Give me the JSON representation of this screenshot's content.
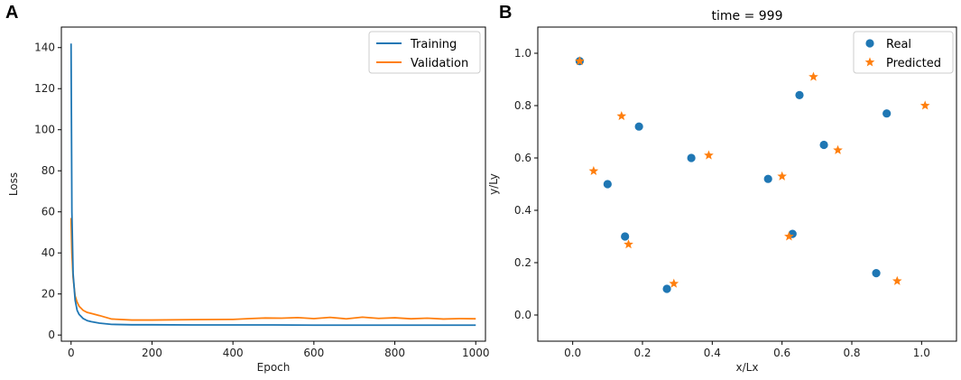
{
  "panels": {
    "a": {
      "letter": "A"
    },
    "b": {
      "letter": "B"
    }
  },
  "chart_data": [
    {
      "type": "line",
      "title": "",
      "xlabel": "Epoch",
      "ylabel": "Loss",
      "xlim": [
        -24,
        1024
      ],
      "ylim": [
        -3,
        150
      ],
      "xticks": [
        0,
        200,
        400,
        600,
        800,
        1000
      ],
      "yticks": [
        0,
        20,
        40,
        60,
        80,
        100,
        120,
        140
      ],
      "legend_position": "top-right",
      "series": [
        {
          "name": "Training",
          "color": "#1f77b4",
          "x": [
            0,
            2,
            5,
            10,
            15,
            20,
            30,
            40,
            50,
            70,
            100,
            150,
            200,
            300,
            400,
            500,
            600,
            700,
            800,
            900,
            1000
          ],
          "y": [
            142,
            60,
            30,
            17,
            12,
            10,
            8,
            7,
            6.5,
            5.8,
            5.2,
            5.0,
            5.0,
            4.9,
            4.9,
            4.9,
            4.8,
            4.8,
            4.8,
            4.8,
            4.8
          ]
        },
        {
          "name": "Validation",
          "color": "#ff7f0e",
          "x": [
            0,
            2,
            5,
            10,
            15,
            20,
            30,
            40,
            50,
            70,
            100,
            150,
            200,
            300,
            400,
            440,
            480,
            520,
            560,
            600,
            640,
            680,
            720,
            760,
            800,
            840,
            880,
            920,
            960,
            1000
          ],
          "y": [
            57,
            40,
            28,
            19,
            16,
            14,
            12,
            11,
            10.5,
            9.5,
            7.8,
            7.3,
            7.3,
            7.5,
            7.6,
            8.0,
            8.3,
            8.2,
            8.5,
            8.0,
            8.6,
            7.9,
            8.7,
            8.1,
            8.4,
            7.9,
            8.2,
            7.8,
            8.0,
            7.9
          ]
        }
      ]
    },
    {
      "type": "scatter",
      "title": "time = 999",
      "xlabel": "x/Lx",
      "ylabel": "y/Ly",
      "xlim": [
        -0.1,
        1.1
      ],
      "ylim": [
        -0.1,
        1.1
      ],
      "xticks": [
        0.0,
        0.2,
        0.4,
        0.6,
        0.8,
        1.0
      ],
      "yticks": [
        0.0,
        0.2,
        0.4,
        0.6,
        0.8,
        1.0
      ],
      "legend_position": "top-right",
      "series": [
        {
          "name": "Real",
          "marker": "circle",
          "color": "#1f77b4",
          "points": [
            [
              0.02,
              0.97
            ],
            [
              0.1,
              0.5
            ],
            [
              0.15,
              0.3
            ],
            [
              0.19,
              0.72
            ],
            [
              0.27,
              0.1
            ],
            [
              0.34,
              0.6
            ],
            [
              0.56,
              0.52
            ],
            [
              0.63,
              0.31
            ],
            [
              0.65,
              0.84
            ],
            [
              0.72,
              0.65
            ],
            [
              0.87,
              0.16
            ],
            [
              0.9,
              0.77
            ]
          ]
        },
        {
          "name": "Predicted",
          "marker": "star",
          "color": "#ff7f0e",
          "points": [
            [
              0.02,
              0.97
            ],
            [
              0.06,
              0.55
            ],
            [
              0.14,
              0.76
            ],
            [
              0.16,
              0.27
            ],
            [
              0.29,
              0.12
            ],
            [
              0.39,
              0.61
            ],
            [
              0.6,
              0.53
            ],
            [
              0.62,
              0.3
            ],
            [
              0.69,
              0.91
            ],
            [
              0.76,
              0.63
            ],
            [
              0.93,
              0.13
            ],
            [
              1.01,
              0.8
            ]
          ]
        }
      ]
    }
  ]
}
